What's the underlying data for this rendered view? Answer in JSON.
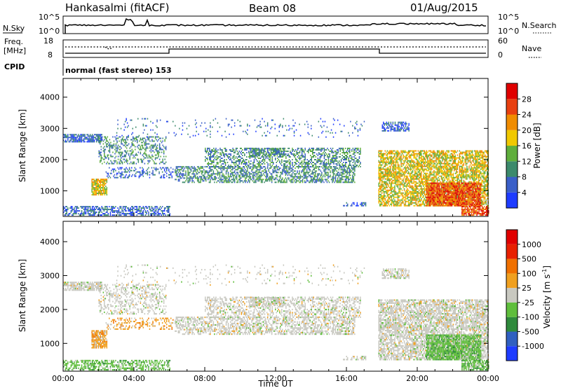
{
  "header": {
    "station": "Hankasalmi (fitACF)",
    "beam": "Beam 08",
    "date": "01/Aug/2015"
  },
  "noise_panel": {
    "left_label": "N.Sky",
    "right_label": "N.Search",
    "left_ticks": [
      "10^5",
      "10^0"
    ],
    "right_ticks": [
      "10^5",
      "10^0"
    ]
  },
  "freq_panel": {
    "left_label_1": "Freq.",
    "left_label_2": "[MHz]",
    "right_label": "Nave",
    "left_ticks": [
      "18",
      "8"
    ],
    "right_ticks": [
      "60",
      "0"
    ]
  },
  "cpid": {
    "label": "CPID",
    "text": "normal (fast stereo) 153"
  },
  "chart_data": [
    {
      "type": "heatmap",
      "title": "",
      "ylabel": "Slant Range [km]",
      "xlabel": "",
      "x_ticks": [
        "00:00",
        "04:00",
        "08:00",
        "12:00",
        "16:00",
        "20:00",
        "00:00"
      ],
      "xlim_hours": [
        0,
        24
      ],
      "y_ticks": [
        1000,
        2000,
        3000,
        4000
      ],
      "ylim": [
        180,
        4600
      ],
      "colorbar": {
        "label": "Power [dB]",
        "ticks": [
          "4",
          "8",
          "12",
          "16",
          "20",
          "24",
          "28"
        ],
        "colors": [
          "#1e3cff",
          "#3a5fc8",
          "#3c8a6c",
          "#5fae3c",
          "#f0c800",
          "#f08c00",
          "#e84010",
          "#e00000"
        ]
      }
    },
    {
      "type": "heatmap",
      "title": "",
      "ylabel": "Slant Range [km]",
      "xlabel": "Time UT",
      "x_ticks": [
        "00:00",
        "04:00",
        "08:00",
        "12:00",
        "16:00",
        "20:00",
        "00:00"
      ],
      "xlim_hours": [
        0,
        24
      ],
      "y_ticks": [
        1000,
        2000,
        3000,
        4000
      ],
      "ylim": [
        180,
        4600
      ],
      "colorbar": {
        "label": "Velocity [m s^-1]",
        "label_main": "Velocity [m s",
        "label_sup": "-1",
        "label_end": "]",
        "ticks": [
          "1000",
          "500",
          "100",
          "25",
          "-25",
          "-100",
          "-500",
          "-1000"
        ],
        "colors": [
          "#1e3cff",
          "#3060c0",
          "#2f8a3c",
          "#5fbe3c",
          "#c8c8c0",
          "#f0a020",
          "#f07000",
          "#e82000",
          "#e00000"
        ]
      }
    }
  ]
}
